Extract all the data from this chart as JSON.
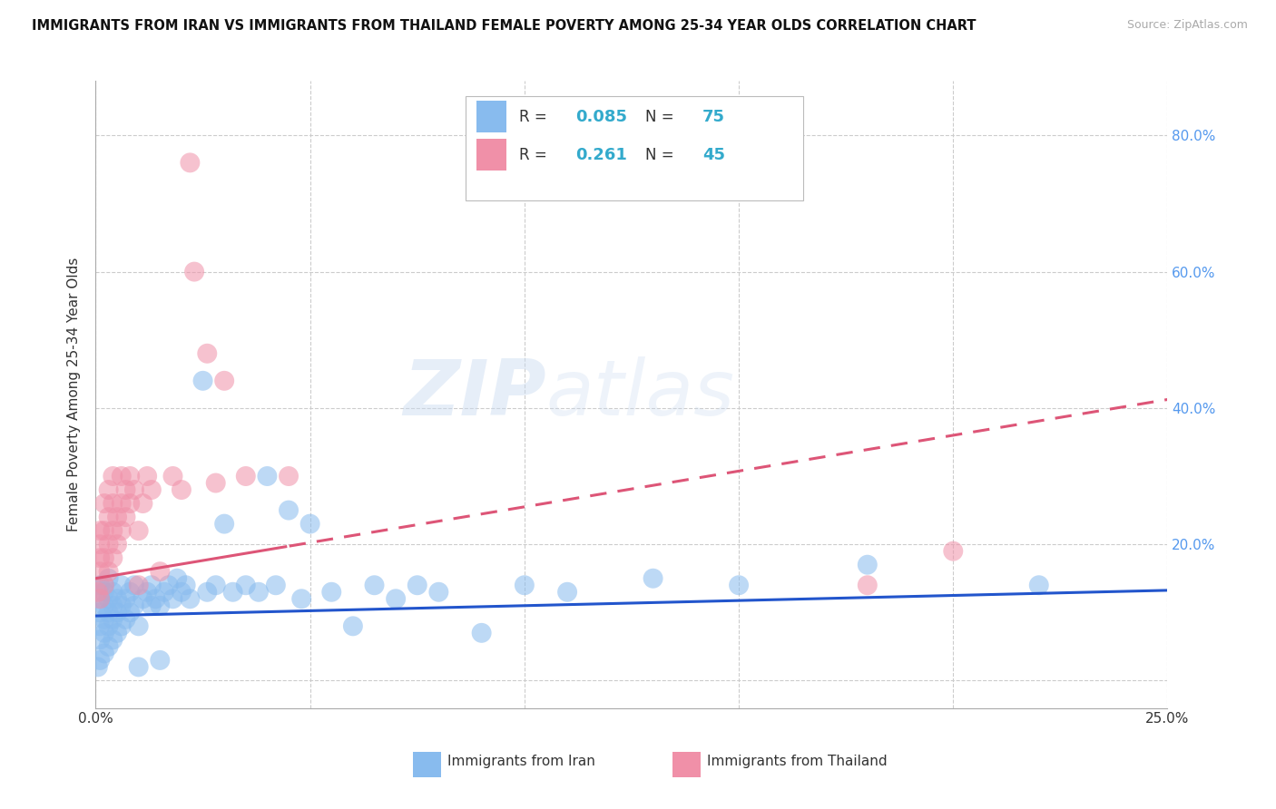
{
  "title": "IMMIGRANTS FROM IRAN VS IMMIGRANTS FROM THAILAND FEMALE POVERTY AMONG 25-34 YEAR OLDS CORRELATION CHART",
  "source": "Source: ZipAtlas.com",
  "ylabel": "Female Poverty Among 25-34 Year Olds",
  "xlim": [
    0.0,
    0.25
  ],
  "ylim": [
    -0.04,
    0.88
  ],
  "iran_color": "#88bbee",
  "thailand_color": "#f090a8",
  "trendline_iran_color": "#2255cc",
  "trendline_thailand_color": "#dd5577",
  "R_iran": "0.085",
  "N_iran": "75",
  "R_thailand": "0.261",
  "N_thailand": "45",
  "number_color": "#33aacc",
  "iran_scatter": [
    [
      0.0005,
      0.02
    ],
    [
      0.001,
      0.03
    ],
    [
      0.001,
      0.06
    ],
    [
      0.001,
      0.08
    ],
    [
      0.001,
      0.1
    ],
    [
      0.001,
      0.12
    ],
    [
      0.001,
      0.14
    ],
    [
      0.002,
      0.04
    ],
    [
      0.002,
      0.07
    ],
    [
      0.002,
      0.09
    ],
    [
      0.002,
      0.11
    ],
    [
      0.002,
      0.13
    ],
    [
      0.002,
      0.14
    ],
    [
      0.003,
      0.05
    ],
    [
      0.003,
      0.08
    ],
    [
      0.003,
      0.1
    ],
    [
      0.003,
      0.12
    ],
    [
      0.003,
      0.15
    ],
    [
      0.004,
      0.06
    ],
    [
      0.004,
      0.09
    ],
    [
      0.004,
      0.11
    ],
    [
      0.004,
      0.13
    ],
    [
      0.005,
      0.07
    ],
    [
      0.005,
      0.1
    ],
    [
      0.005,
      0.12
    ],
    [
      0.006,
      0.08
    ],
    [
      0.006,
      0.11
    ],
    [
      0.006,
      0.14
    ],
    [
      0.007,
      0.09
    ],
    [
      0.007,
      0.12
    ],
    [
      0.008,
      0.1
    ],
    [
      0.008,
      0.13
    ],
    [
      0.009,
      0.11
    ],
    [
      0.009,
      0.14
    ],
    [
      0.01,
      0.02
    ],
    [
      0.01,
      0.08
    ],
    [
      0.011,
      0.12
    ],
    [
      0.012,
      0.13
    ],
    [
      0.013,
      0.11
    ],
    [
      0.013,
      0.14
    ],
    [
      0.014,
      0.12
    ],
    [
      0.015,
      0.03
    ],
    [
      0.015,
      0.11
    ],
    [
      0.016,
      0.13
    ],
    [
      0.017,
      0.14
    ],
    [
      0.018,
      0.12
    ],
    [
      0.019,
      0.15
    ],
    [
      0.02,
      0.13
    ],
    [
      0.021,
      0.14
    ],
    [
      0.022,
      0.12
    ],
    [
      0.025,
      0.44
    ],
    [
      0.026,
      0.13
    ],
    [
      0.028,
      0.14
    ],
    [
      0.03,
      0.23
    ],
    [
      0.032,
      0.13
    ],
    [
      0.035,
      0.14
    ],
    [
      0.038,
      0.13
    ],
    [
      0.04,
      0.3
    ],
    [
      0.042,
      0.14
    ],
    [
      0.045,
      0.25
    ],
    [
      0.048,
      0.12
    ],
    [
      0.05,
      0.23
    ],
    [
      0.055,
      0.13
    ],
    [
      0.06,
      0.08
    ],
    [
      0.065,
      0.14
    ],
    [
      0.07,
      0.12
    ],
    [
      0.075,
      0.14
    ],
    [
      0.08,
      0.13
    ],
    [
      0.09,
      0.07
    ],
    [
      0.1,
      0.14
    ],
    [
      0.11,
      0.13
    ],
    [
      0.13,
      0.15
    ],
    [
      0.15,
      0.14
    ],
    [
      0.18,
      0.17
    ],
    [
      0.22,
      0.14
    ]
  ],
  "thailand_scatter": [
    [
      0.0005,
      0.13
    ],
    [
      0.001,
      0.12
    ],
    [
      0.001,
      0.16
    ],
    [
      0.001,
      0.18
    ],
    [
      0.001,
      0.2
    ],
    [
      0.001,
      0.22
    ],
    [
      0.002,
      0.14
    ],
    [
      0.002,
      0.18
    ],
    [
      0.002,
      0.22
    ],
    [
      0.002,
      0.26
    ],
    [
      0.003,
      0.16
    ],
    [
      0.003,
      0.2
    ],
    [
      0.003,
      0.24
    ],
    [
      0.003,
      0.28
    ],
    [
      0.004,
      0.18
    ],
    [
      0.004,
      0.22
    ],
    [
      0.004,
      0.26
    ],
    [
      0.004,
      0.3
    ],
    [
      0.005,
      0.2
    ],
    [
      0.005,
      0.24
    ],
    [
      0.006,
      0.22
    ],
    [
      0.006,
      0.26
    ],
    [
      0.006,
      0.3
    ],
    [
      0.007,
      0.24
    ],
    [
      0.007,
      0.28
    ],
    [
      0.008,
      0.26
    ],
    [
      0.008,
      0.3
    ],
    [
      0.009,
      0.28
    ],
    [
      0.01,
      0.14
    ],
    [
      0.01,
      0.22
    ],
    [
      0.011,
      0.26
    ],
    [
      0.012,
      0.3
    ],
    [
      0.013,
      0.28
    ],
    [
      0.015,
      0.16
    ],
    [
      0.018,
      0.3
    ],
    [
      0.02,
      0.28
    ],
    [
      0.022,
      0.76
    ],
    [
      0.023,
      0.6
    ],
    [
      0.026,
      0.48
    ],
    [
      0.028,
      0.29
    ],
    [
      0.03,
      0.44
    ],
    [
      0.035,
      0.3
    ],
    [
      0.045,
      0.3
    ],
    [
      0.18,
      0.14
    ],
    [
      0.2,
      0.19
    ]
  ]
}
